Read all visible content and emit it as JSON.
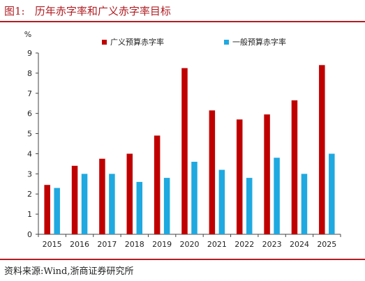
{
  "figure": {
    "title": "图1:   历年赤字率和广义赤字率目标",
    "source": "资料来源:Wind,浙商证券研究所"
  },
  "colors": {
    "accent": "#b01e23",
    "series_1": "#c00000",
    "series_2": "#1fa9e0"
  },
  "chart_data": {
    "type": "bar",
    "ylabel": "%",
    "ylim": [
      0,
      9
    ],
    "yticks": [
      "0",
      "1",
      "2",
      "3",
      "4",
      "5",
      "6",
      "7",
      "8",
      "9"
    ],
    "grid": false,
    "legend_position": "top-right",
    "categories": [
      "2015",
      "2016",
      "2017",
      "2018",
      "2019",
      "2020",
      "2021",
      "2022",
      "2023",
      "2024",
      "2025"
    ],
    "series": [
      {
        "name": "广义预算赤字率",
        "values": [
          2.45,
          3.4,
          3.75,
          4.0,
          4.9,
          8.25,
          6.15,
          5.7,
          5.95,
          6.65,
          8.4
        ]
      },
      {
        "name": "一般预算赤字率",
        "values": [
          2.3,
          3.0,
          3.0,
          2.6,
          2.8,
          3.6,
          3.2,
          2.8,
          3.8,
          3.0,
          4.0
        ]
      }
    ]
  }
}
